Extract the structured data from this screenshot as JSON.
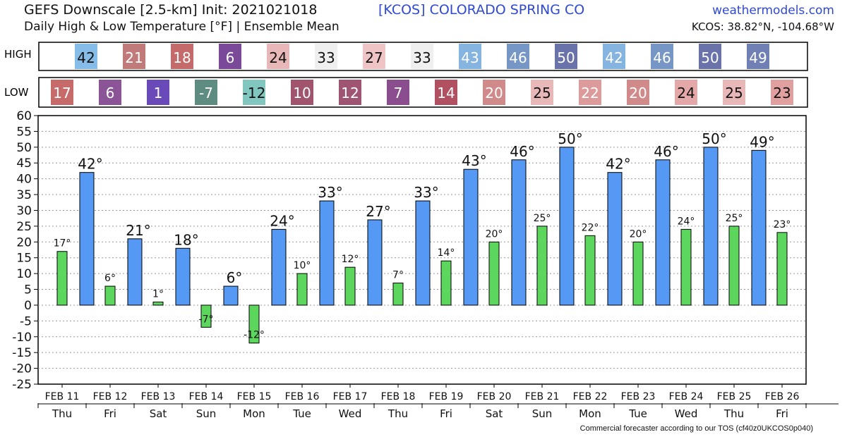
{
  "header": {
    "title_line1": "GEFS Downscale [2.5-km] Init: 2021021018",
    "title_line2": "Daily High & Low Temperature [°F] | Ensemble Mean",
    "station": "[KCOS]   COLORADO SPRING CO",
    "site": "weathermodels.com",
    "coords": "KCOS: 38.82°N, -104.68°W"
  },
  "rows": {
    "high_label": "HIGH",
    "low_label": "LOW"
  },
  "footer": "Commercial forecaster according to our TOS (cf40z0UKCOS0p040)",
  "colors": {
    "high_bar": "#5599f5",
    "low_bar": "#5cd65c",
    "bar_outline": "#000000",
    "grid": "#999999"
  },
  "chart_data": {
    "type": "bar",
    "categories": [
      "FEB 11",
      "FEB 12",
      "FEB 13",
      "FEB 14",
      "FEB 15",
      "FEB 16",
      "FEB 17",
      "FEB 18",
      "FEB 19",
      "FEB 20",
      "FEB 21",
      "FEB 22",
      "FEB 23",
      "FEB 24",
      "FEB 25",
      "FEB 26"
    ],
    "weekdays": [
      "Thu",
      "Fri",
      "Sat",
      "Sun",
      "Mon",
      "Tue",
      "Wed",
      "Thu",
      "Fri",
      "Sat",
      "Sun",
      "Mon",
      "Tue",
      "Wed",
      "Thu",
      "Fri"
    ],
    "high_values": [
      42,
      21,
      18,
      6,
      24,
      33,
      27,
      33,
      43,
      46,
      50,
      42,
      46,
      50,
      49
    ],
    "low_values": [
      17,
      6,
      1,
      -7,
      -12,
      10,
      12,
      7,
      14,
      20,
      25,
      22,
      20,
      24,
      25,
      23
    ],
    "high_cell_colors": [
      "#86bde8",
      "#c07a7a",
      "#c46a6a",
      "#7a4a98",
      "#e8b8b8",
      "#efefef",
      "#eec4c4",
      "#efefef",
      "#86b4e0",
      "#7696c6",
      "#6a72aa",
      "#86b4e0",
      "#7696c6",
      "#6a72aa",
      "#7080b4"
    ],
    "low_cell_colors": [
      "#c66a6a",
      "#8a5496",
      "#6a4ab8",
      "#5f8c80",
      "#82c6c0",
      "#a0546e",
      "#a05474",
      "#8a4e8e",
      "#b05060",
      "#d08a8a",
      "#e8b8b8",
      "#dc9a9a",
      "#d08a8a",
      "#e4a8a8",
      "#e8b8b8",
      "#e0a0a0"
    ],
    "ylim": [
      -25,
      60
    ],
    "yticks": [
      -25,
      -20,
      -15,
      -10,
      -5,
      0,
      5,
      10,
      15,
      20,
      25,
      30,
      35,
      40,
      45,
      50,
      55,
      60
    ],
    "grid": true,
    "unit_suffix": "°"
  }
}
